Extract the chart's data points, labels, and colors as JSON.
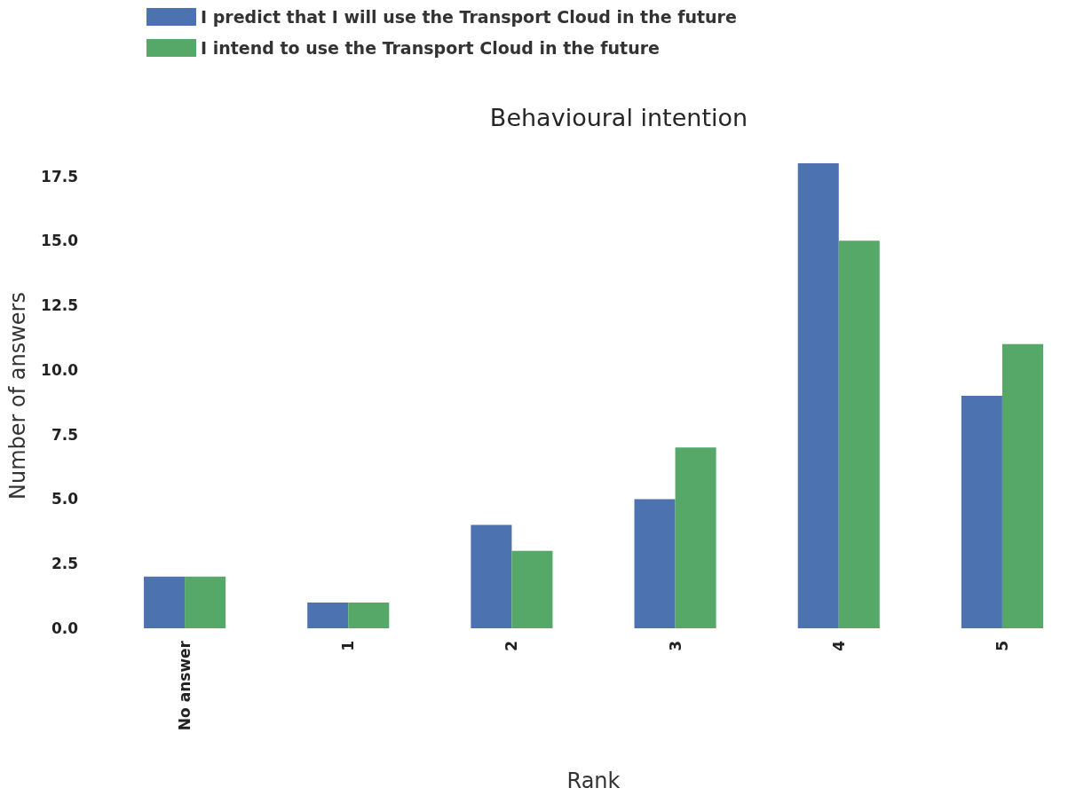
{
  "chart_data": {
    "type": "bar",
    "title": "Behavioural intention",
    "xlabel": "Rank",
    "ylabel": "Number of answers",
    "categories": [
      "No answer",
      "1",
      "2",
      "3",
      "4",
      "5"
    ],
    "series": [
      {
        "name": "I predict that I will use the Transport Cloud in the future",
        "color": "#4c72b0",
        "values": [
          2,
          1,
          4,
          5,
          18,
          9
        ]
      },
      {
        "name": "I intend to use the Transport Cloud in the future",
        "color": "#55a868",
        "values": [
          2,
          1,
          3,
          7,
          15,
          11
        ]
      }
    ],
    "ylim": [
      0,
      18
    ],
    "yticks": [
      {
        "value": 0,
        "label": "0.0"
      },
      2.5,
      {
        "value": 5,
        "label": "5.0"
      },
      7.5,
      {
        "value": 10,
        "label": "10.0"
      },
      12.5,
      {
        "value": 15,
        "label": "15.0"
      },
      17.5
    ],
    "grid": false,
    "legend": "top left"
  }
}
